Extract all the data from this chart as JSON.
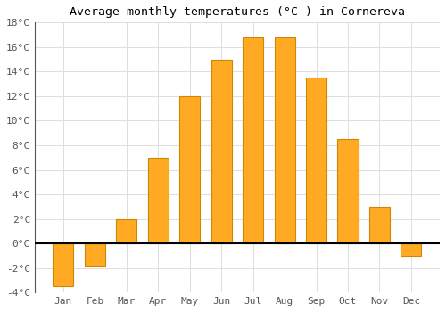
{
  "title": "Average monthly temperatures (°C ) in Cornereva",
  "months": [
    "Jan",
    "Feb",
    "Mar",
    "Apr",
    "May",
    "Jun",
    "Jul",
    "Aug",
    "Sep",
    "Oct",
    "Nov",
    "Dec"
  ],
  "values": [
    -3.5,
    -1.8,
    2.0,
    7.0,
    12.0,
    15.0,
    16.8,
    16.8,
    13.5,
    8.5,
    3.0,
    -1.0
  ],
  "bar_color": "#FFAA22",
  "bar_edge_color": "#CC8800",
  "ylim": [
    -4,
    18
  ],
  "yticks": [
    -4,
    -2,
    0,
    2,
    4,
    6,
    8,
    10,
    12,
    14,
    16,
    18
  ],
  "background_color": "#FFFFFF",
  "grid_color": "#DDDDDD",
  "title_fontsize": 9.5,
  "tick_fontsize": 8,
  "font_family": "monospace"
}
